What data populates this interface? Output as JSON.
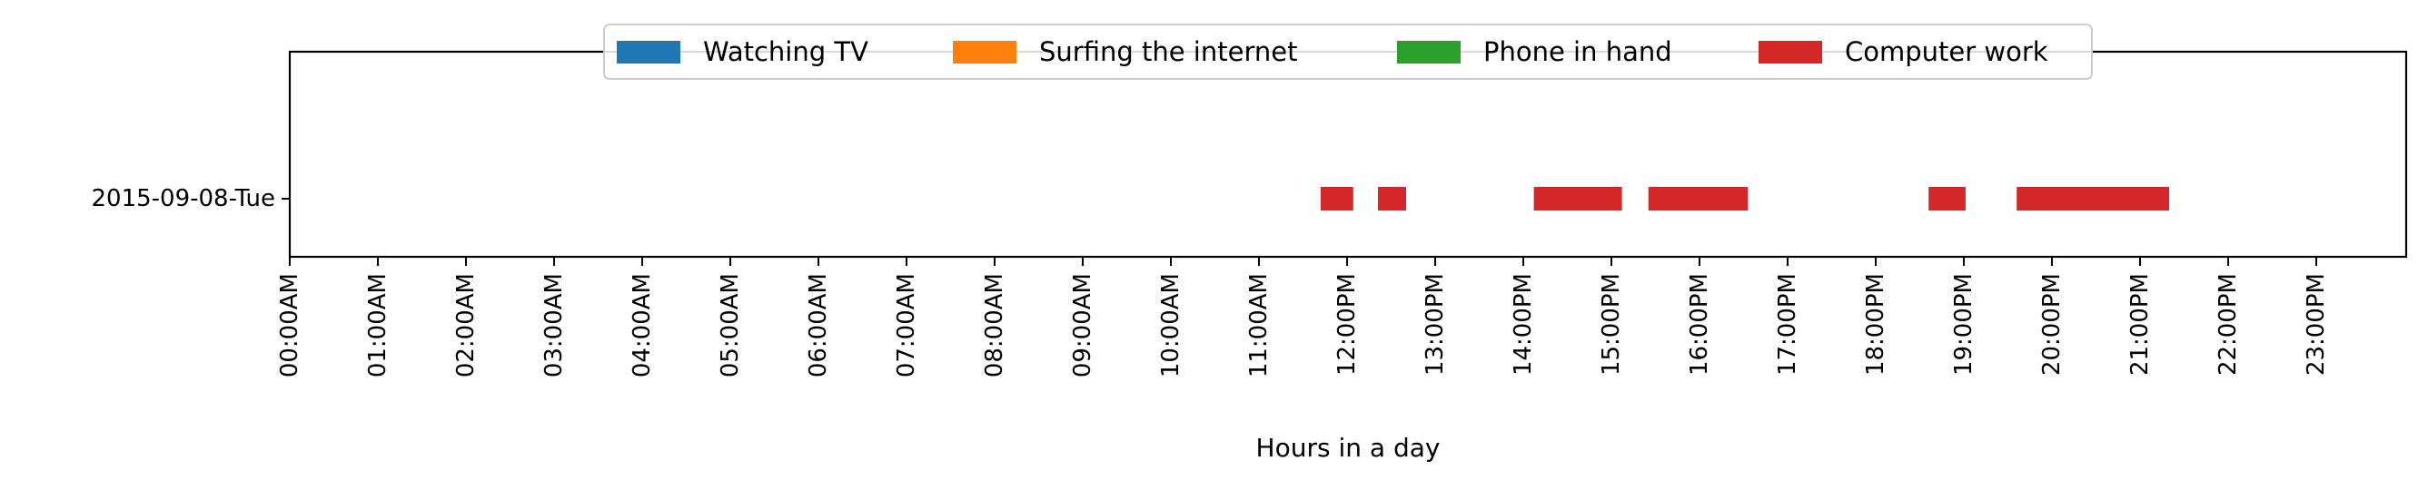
{
  "chart_data": {
    "type": "timeline",
    "xlabel": "Hours in a day",
    "xlim": [
      0,
      24
    ],
    "x_ticks": [
      {
        "value": 0,
        "label": "00:00AM"
      },
      {
        "value": 1,
        "label": "01:00AM"
      },
      {
        "value": 2,
        "label": "02:00AM"
      },
      {
        "value": 3,
        "label": "03:00AM"
      },
      {
        "value": 4,
        "label": "04:00AM"
      },
      {
        "value": 5,
        "label": "05:00AM"
      },
      {
        "value": 6,
        "label": "06:00AM"
      },
      {
        "value": 7,
        "label": "07:00AM"
      },
      {
        "value": 8,
        "label": "08:00AM"
      },
      {
        "value": 9,
        "label": "09:00AM"
      },
      {
        "value": 10,
        "label": "10:00AM"
      },
      {
        "value": 11,
        "label": "11:00AM"
      },
      {
        "value": 12,
        "label": "12:00PM"
      },
      {
        "value": 13,
        "label": "13:00PM"
      },
      {
        "value": 14,
        "label": "14:00PM"
      },
      {
        "value": 15,
        "label": "15:00PM"
      },
      {
        "value": 16,
        "label": "16:00PM"
      },
      {
        "value": 17,
        "label": "17:00PM"
      },
      {
        "value": 18,
        "label": "18:00PM"
      },
      {
        "value": 19,
        "label": "19:00PM"
      },
      {
        "value": 20,
        "label": "20:00PM"
      },
      {
        "value": 21,
        "label": "21:00PM"
      },
      {
        "value": 22,
        "label": "22:00PM"
      },
      {
        "value": 23,
        "label": "23:00PM"
      }
    ],
    "rows": [
      "2015-09-08-Tue"
    ],
    "legend_position": "top-center",
    "grid": false,
    "series": [
      {
        "name": "Watching TV",
        "color": "#1f77b4",
        "segments": []
      },
      {
        "name": "Surfing the internet",
        "color": "#ff7f0e",
        "segments": []
      },
      {
        "name": "Phone in hand",
        "color": "#2ca02c",
        "segments": []
      },
      {
        "name": "Computer work",
        "color": "#d62728",
        "segments": [
          {
            "row": "2015-09-08-Tue",
            "start": 11.7,
            "end": 12.07
          },
          {
            "row": "2015-09-08-Tue",
            "start": 12.35,
            "end": 12.67
          },
          {
            "row": "2015-09-08-Tue",
            "start": 14.12,
            "end": 15.12
          },
          {
            "row": "2015-09-08-Tue",
            "start": 15.42,
            "end": 16.55
          },
          {
            "row": "2015-09-08-Tue",
            "start": 18.6,
            "end": 19.02
          },
          {
            "row": "2015-09-08-Tue",
            "start": 19.6,
            "end": 21.33
          }
        ]
      }
    ]
  }
}
